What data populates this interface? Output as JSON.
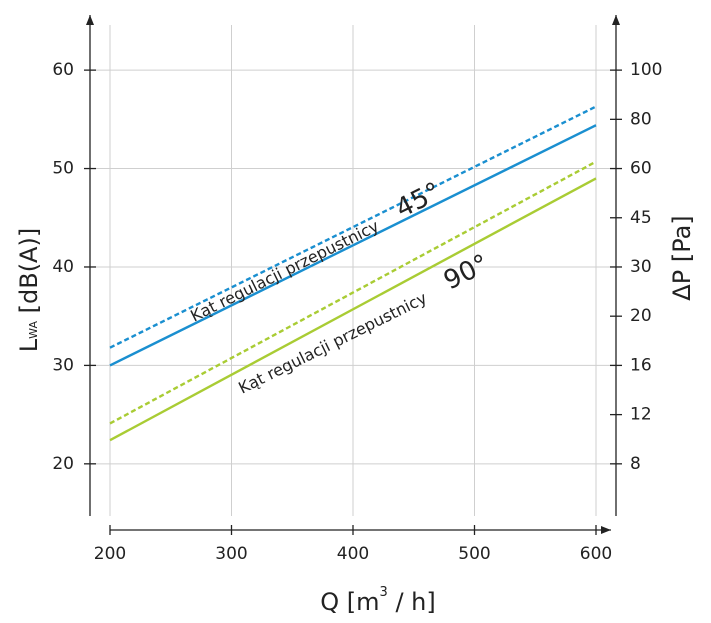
{
  "chart_data": {
    "type": "line",
    "x_label": {
      "main": "Q [m",
      "sup": "3",
      "tail": " / h]"
    },
    "y_label": {
      "main": "L",
      "sub": "WA",
      "tail": " [dB(A)]"
    },
    "y2_label": "ΔP [Pa]",
    "x": [
      200,
      600
    ],
    "series": [
      {
        "name": "45° dashed",
        "color": "#1a8fd0",
        "dash": true,
        "values": [
          31.8,
          56.3
        ]
      },
      {
        "name": "45° solid",
        "color": "#1a8fd0",
        "dash": false,
        "values": [
          30.0,
          54.4
        ]
      },
      {
        "name": "90° dashed",
        "color": "#a9cc34",
        "dash": true,
        "values": [
          24.1,
          50.7
        ]
      },
      {
        "name": "90° solid",
        "color": "#a9cc34",
        "dash": false,
        "values": [
          22.4,
          49.0
        ]
      }
    ],
    "annotations": [
      {
        "text": "Kąt regulacji przepustnicy",
        "angle": "45°"
      },
      {
        "text": "Kąt regulacji przepustnicy",
        "angle": "90°"
      }
    ],
    "xlim": [
      200,
      600
    ],
    "xticks": [
      200,
      300,
      400,
      500,
      600
    ],
    "ylim": [
      14.7,
      65.6
    ],
    "yticks": [
      20,
      30,
      40,
      50,
      60
    ],
    "y2ticks": [
      8,
      12,
      16,
      20,
      30,
      45,
      60,
      80,
      100
    ],
    "grid": true
  }
}
